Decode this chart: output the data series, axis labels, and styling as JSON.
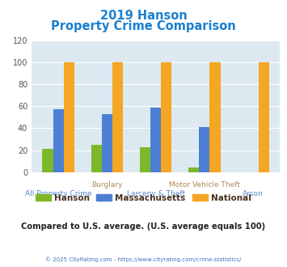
{
  "title_line1": "2019 Hanson",
  "title_line2": "Property Crime Comparison",
  "categories": [
    "All Property Crime",
    "Burglary",
    "Larceny & Theft",
    "Motor Vehicle Theft",
    "Arson"
  ],
  "xlabels_top": [
    "",
    "Burglary",
    "",
    "Motor Vehicle Theft",
    ""
  ],
  "xlabels_bottom": [
    "All Property Crime",
    "",
    "Larceny & Theft",
    "",
    "Arson"
  ],
  "hanson": [
    21,
    25,
    23,
    4,
    0
  ],
  "massachusetts": [
    57,
    53,
    59,
    41,
    0
  ],
  "national": [
    100,
    100,
    100,
    100,
    100
  ],
  "hanson_color": "#7db82a",
  "mass_color": "#4d7fd4",
  "national_color": "#f5a623",
  "ylim": [
    0,
    120
  ],
  "yticks": [
    0,
    20,
    40,
    60,
    80,
    100,
    120
  ],
  "bg_color": "#dce9f0",
  "title_color": "#1a80d0",
  "xlabel_top_color": "#b08858",
  "xlabel_bottom_color": "#5588cc",
  "legend_label_color": "#4a3020",
  "note_text": "Compared to U.S. average. (U.S. average equals 100)",
  "note_color": "#222222",
  "footer_text": "© 2025 CityRating.com - https://www.cityrating.com/crime-statistics/",
  "footer_color": "#4472c4",
  "bar_width": 0.22
}
